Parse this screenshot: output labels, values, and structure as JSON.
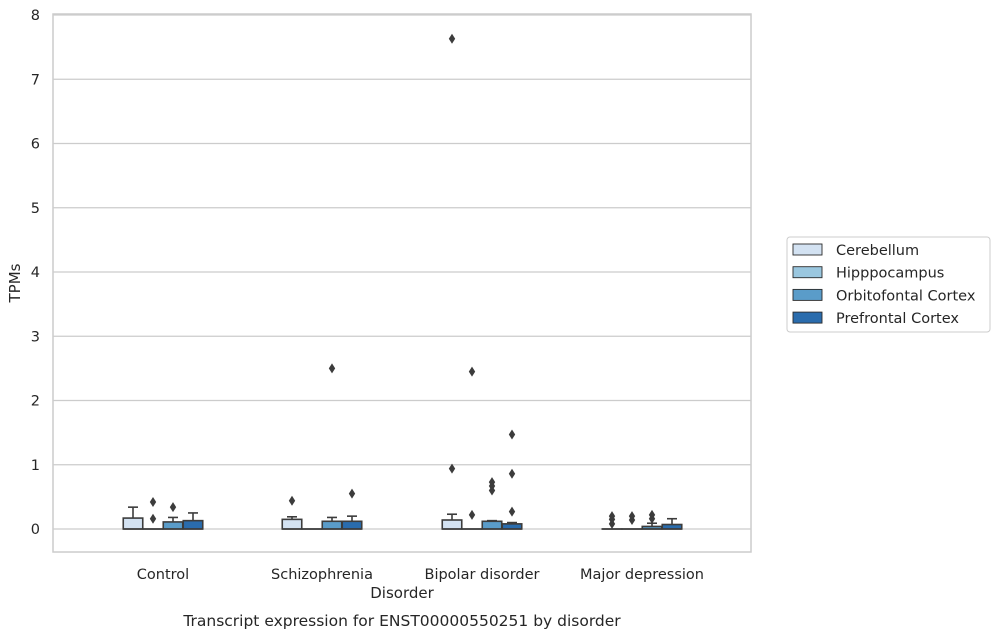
{
  "chart_data": {
    "type": "box",
    "caption": "Transcript expression for ENST00000550251 by disorder",
    "xlabel": "Disorder",
    "ylabel": "TPMs",
    "ylim": [
      -0.35,
      8.03
    ],
    "yticks": [
      0,
      1,
      2,
      3,
      4,
      5,
      6,
      7,
      8
    ],
    "grid": true,
    "legend_position": "right",
    "categories": [
      "Control",
      "Schizophrenia",
      "Bipolar disorder",
      "Major depression"
    ],
    "series": [
      {
        "name": "Cerebellum",
        "color": "#d3e2f2",
        "boxes": [
          {
            "q1": 0,
            "median": 0,
            "q3": 0.17,
            "whisker_low": 0,
            "whisker_high": 0.34,
            "outliers": []
          },
          {
            "q1": 0,
            "median": 0,
            "q3": 0.15,
            "whisker_low": 0,
            "whisker_high": 0.19,
            "outliers": [
              0.44
            ]
          },
          {
            "q1": 0,
            "median": 0,
            "q3": 0.14,
            "whisker_low": 0,
            "whisker_high": 0.23,
            "outliers": [
              7.63,
              0.94
            ]
          },
          {
            "q1": 0,
            "median": 0,
            "q3": 0,
            "whisker_low": 0,
            "whisker_high": 0,
            "outliers": [
              0.2,
              0.15,
              0.08
            ]
          }
        ]
      },
      {
        "name": "Hipppocampus",
        "color": "#9ac7df",
        "boxes": [
          {
            "q1": 0,
            "median": 0,
            "q3": 0,
            "whisker_low": 0,
            "whisker_high": 0,
            "outliers": [
              0.42,
              0.16
            ]
          },
          {
            "q1": 0,
            "median": 0,
            "q3": 0,
            "whisker_low": 0,
            "whisker_high": 0,
            "outliers": []
          },
          {
            "q1": 0,
            "median": 0,
            "q3": 0,
            "whisker_low": 0,
            "whisker_high": 0,
            "outliers": [
              2.45,
              0.22
            ]
          },
          {
            "q1": 0,
            "median": 0,
            "q3": 0,
            "whisker_low": 0,
            "whisker_high": 0,
            "outliers": [
              0.2,
              0.14
            ]
          }
        ]
      },
      {
        "name": "Orbitofontal Cortex",
        "color": "#5a9cc9",
        "boxes": [
          {
            "q1": 0,
            "median": 0,
            "q3": 0.11,
            "whisker_low": 0,
            "whisker_high": 0.18,
            "outliers": [
              0.34
            ]
          },
          {
            "q1": 0,
            "median": 0,
            "q3": 0.12,
            "whisker_low": 0,
            "whisker_high": 0.18,
            "outliers": [
              2.5
            ]
          },
          {
            "q1": 0,
            "median": 0,
            "q3": 0.12,
            "whisker_low": 0,
            "whisker_high": 0.13,
            "outliers": [
              0.73,
              0.67,
              0.6
            ]
          },
          {
            "q1": 0,
            "median": 0,
            "q3": 0.04,
            "whisker_low": 0,
            "whisker_high": 0.09,
            "outliers": [
              0.22,
              0.16
            ]
          }
        ]
      },
      {
        "name": "Prefrontal Cortex",
        "color": "#2a6cad",
        "boxes": [
          {
            "q1": 0,
            "median": 0,
            "q3": 0.13,
            "whisker_low": 0,
            "whisker_high": 0.25,
            "outliers": []
          },
          {
            "q1": 0,
            "median": 0,
            "q3": 0.12,
            "whisker_low": 0,
            "whisker_high": 0.2,
            "outliers": [
              0.55
            ]
          },
          {
            "q1": 0,
            "median": 0,
            "q3": 0.08,
            "whisker_low": 0,
            "whisker_high": 0.1,
            "outliers": [
              1.47,
              0.86,
              0.27
            ]
          },
          {
            "q1": 0,
            "median": 0,
            "q3": 0.07,
            "whisker_low": 0,
            "whisker_high": 0.16,
            "outliers": []
          }
        ]
      }
    ]
  }
}
